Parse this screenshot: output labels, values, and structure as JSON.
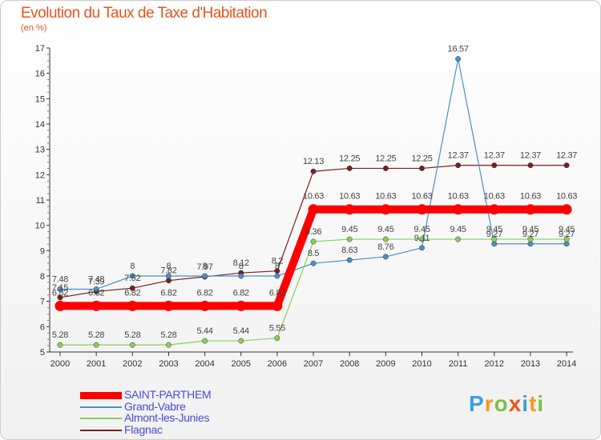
{
  "title": "Evolution du Taux de Taxe d'Habitation",
  "subtitle": "(en %)",
  "logo": {
    "text": "Proxiti",
    "letters": [
      "P",
      "r",
      "o",
      "x",
      "i",
      "t",
      "i"
    ],
    "letter_colors": [
      "#3aa0e0",
      "#f29a1b",
      "#7cc142",
      "#e8541e",
      "#3aa0e0",
      "#f29a1b",
      "#7cc142"
    ]
  },
  "chart_data": {
    "type": "line",
    "title": "Evolution du Taux de Taxe d'Habitation",
    "ylabel": "(en %)",
    "xlabel": "",
    "x": [
      "2000",
      "2001",
      "2002",
      "2003",
      "2004",
      "2005",
      "2006",
      "2007",
      "2008",
      "2009",
      "2010",
      "2011",
      "2012",
      "2013",
      "2014"
    ],
    "ylim": [
      5,
      17
    ],
    "yticks": [
      5,
      6,
      7,
      8,
      9,
      10,
      11,
      12,
      13,
      14,
      15,
      16,
      17
    ],
    "grid": false,
    "legend_position": "bottom-left",
    "series": [
      {
        "name": "SAINT-PARTHEM",
        "color": "#ff0000",
        "values": [
          6.82,
          6.82,
          6.82,
          6.82,
          6.82,
          6.82,
          6.82,
          10.63,
          10.63,
          10.63,
          10.63,
          10.63,
          10.63,
          10.63,
          10.63
        ]
      },
      {
        "name": "Grand-Vabre",
        "color": "#4a90c8",
        "values": [
          7.48,
          7.48,
          8,
          8,
          8,
          8,
          8,
          8.5,
          8.63,
          8.76,
          9.11,
          16.57,
          9.27,
          9.27,
          9.27
        ]
      },
      {
        "name": "Almont-les-Junies",
        "color": "#88d058",
        "values": [
          5.28,
          5.28,
          5.28,
          5.28,
          5.44,
          5.44,
          5.55,
          9.36,
          9.45,
          9.45,
          9.45,
          9.45,
          9.45,
          9.45,
          9.45
        ]
      },
      {
        "name": "Flagnac",
        "color": "#7a1f1f",
        "values": [
          7.15,
          7.39,
          7.52,
          7.82,
          7.97,
          8.12,
          8.2,
          12.13,
          12.25,
          12.25,
          12.25,
          12.37,
          12.37,
          12.37,
          12.37
        ]
      }
    ],
    "data_labels": [
      [
        "6.82",
        "6.82",
        "6.82",
        "6.82",
        "6.82",
        "6.82",
        "6.82",
        "10.63",
        "10.63",
        "10.63",
        "10.63",
        "10.63",
        "10.63",
        "10.63",
        "10.63"
      ],
      [
        "7.48",
        "7.48",
        "8",
        "8",
        "8",
        "8",
        "8",
        "8.5",
        "8.63",
        "8.76",
        "9.11",
        "16.57",
        "9.27",
        "9.27",
        "9.27"
      ],
      [
        "5.28",
        "5.28",
        "5.28",
        "5.28",
        "5.44",
        "5.44",
        "5.55",
        "9.36",
        "9.45",
        "9.45",
        "9.45",
        "9.45",
        "9.45",
        "9.45",
        "9.45"
      ],
      [
        "7.15",
        "7.39",
        "7.52",
        "7.82",
        "7.97",
        "8.12",
        "8.2",
        "12.13",
        "12.25",
        "12.25",
        "12.25",
        "12.37",
        "12.37",
        "12.37",
        "12.37"
      ]
    ]
  }
}
